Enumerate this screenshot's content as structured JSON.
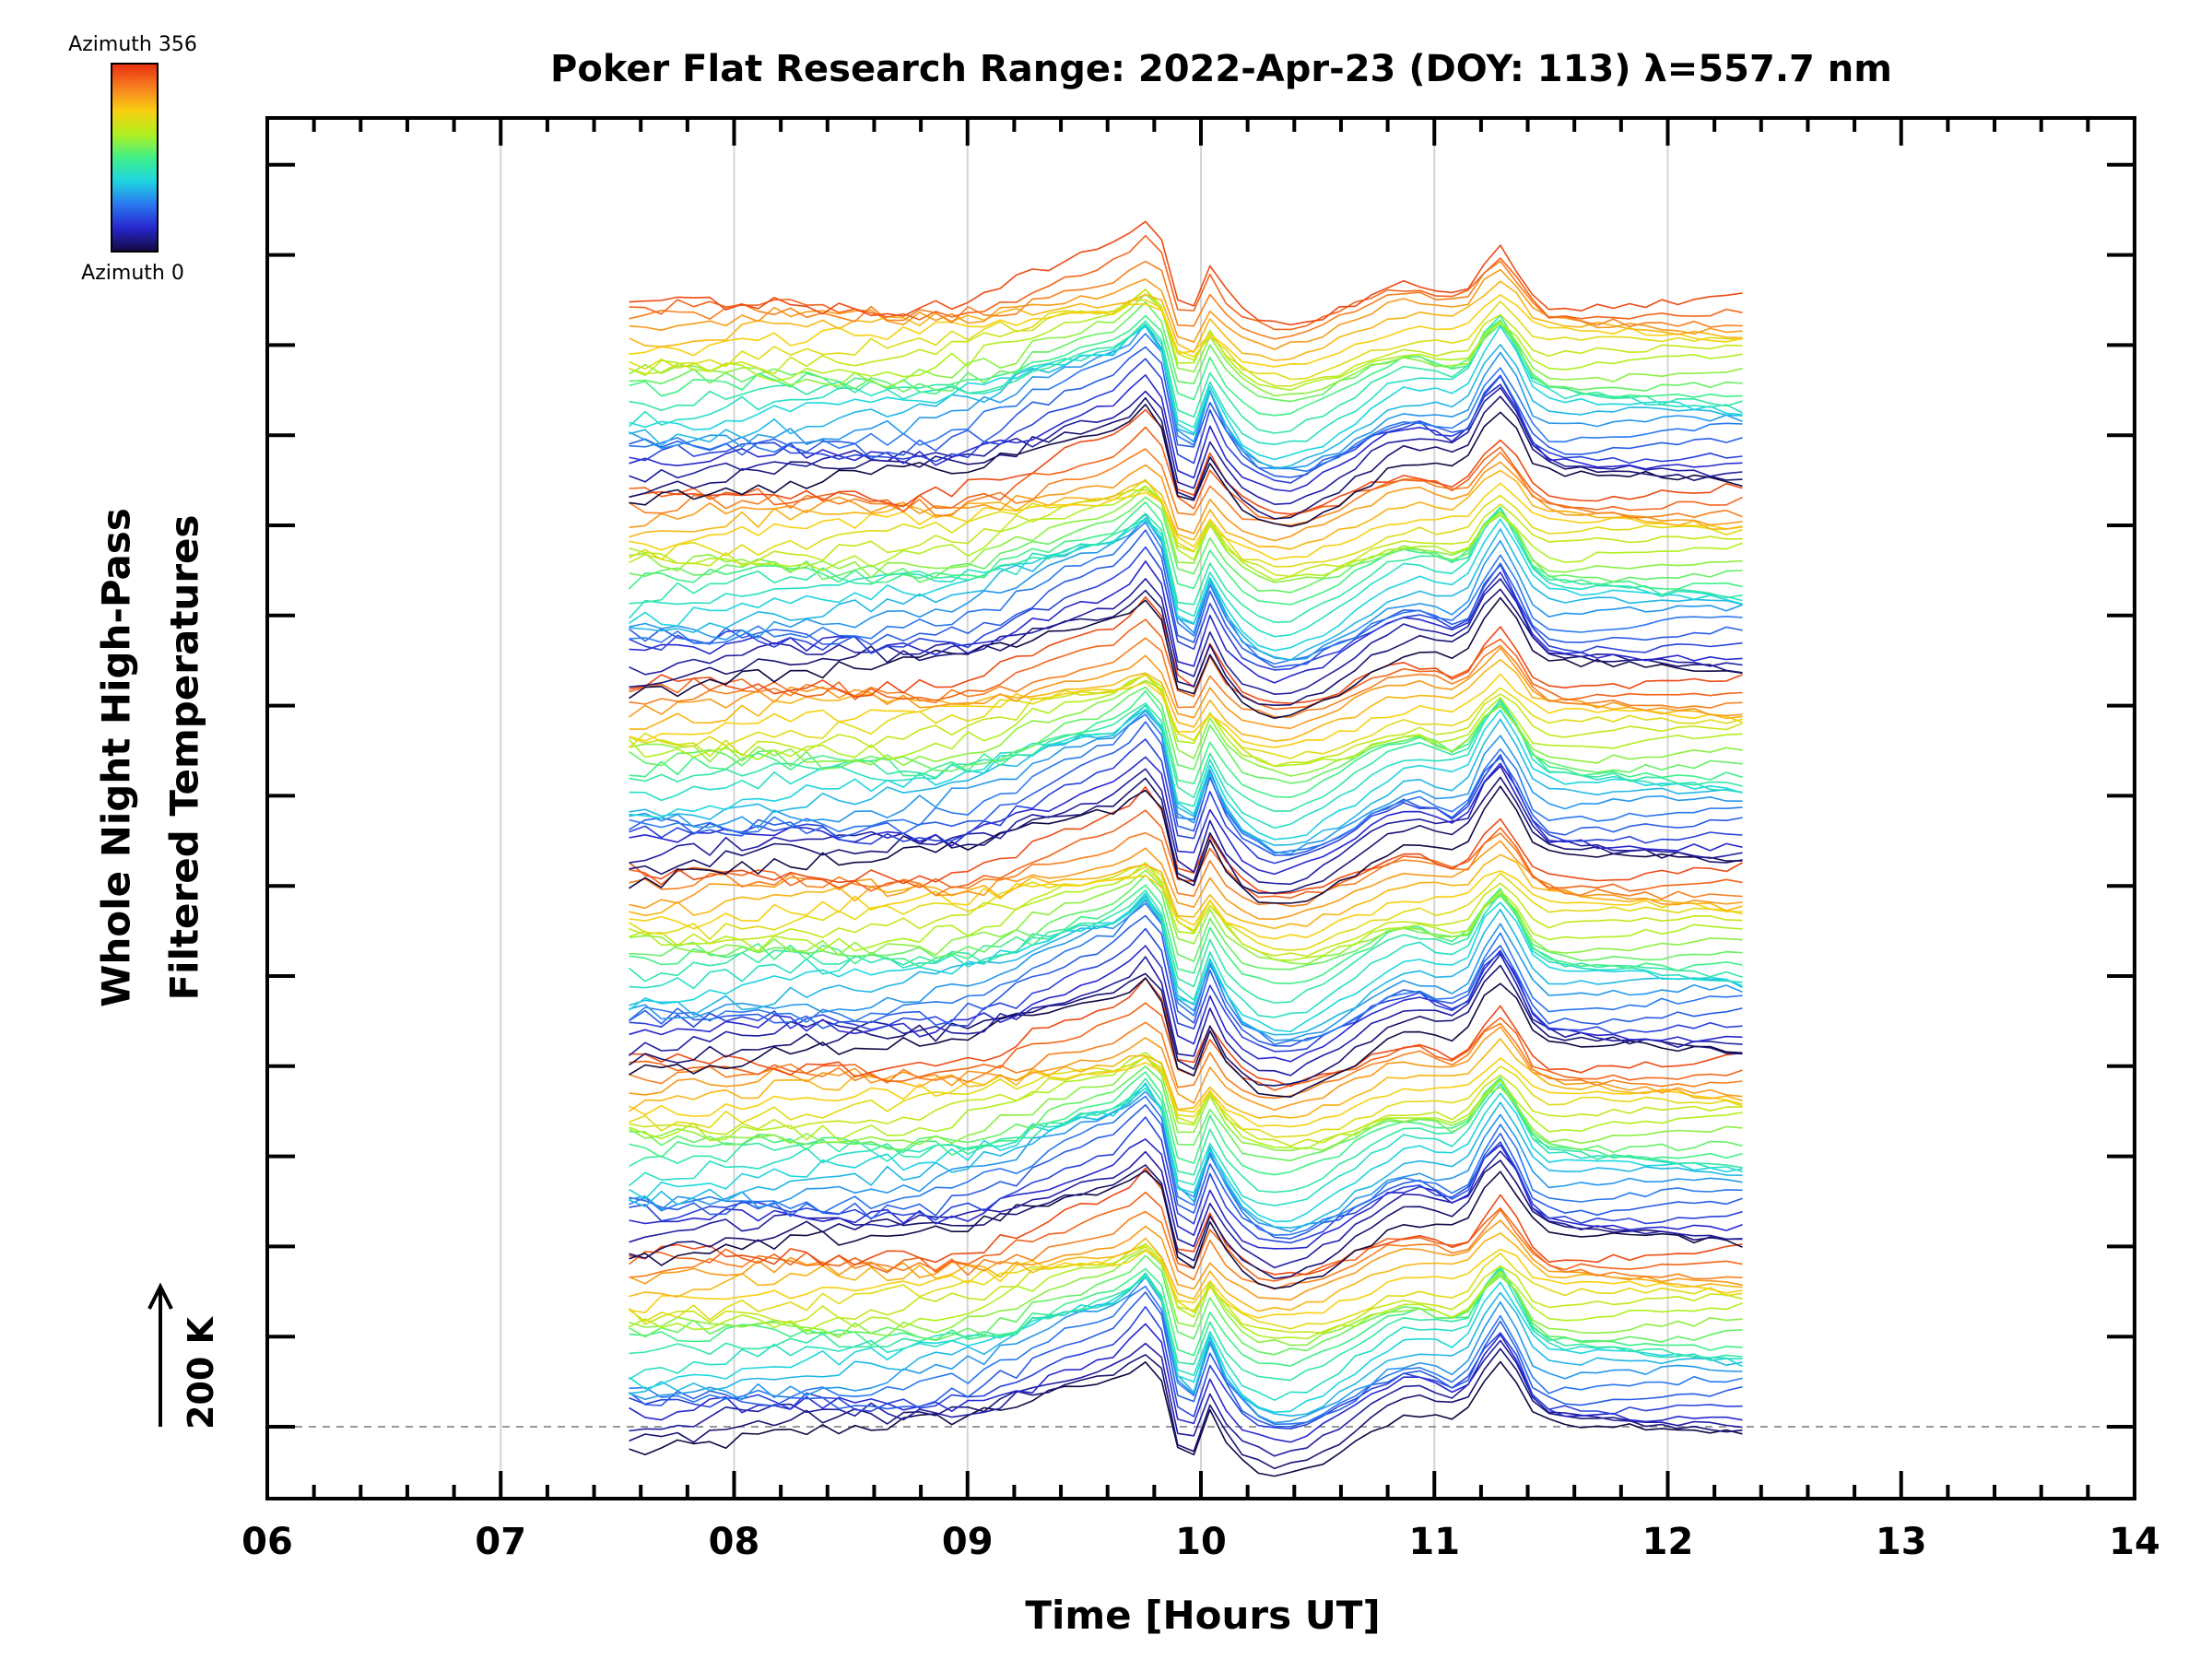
{
  "chart_data": {
    "type": "line",
    "title": "Poker Flat Research Range: 2022-Apr-23 (DOY: 113) λ=557.7 nm",
    "xlabel": "Time [Hours UT]",
    "ylabel_lines": [
      "Whole Night High-Pass",
      "Filtered Temperatures"
    ],
    "xlim": [
      6,
      14
    ],
    "x_ticks": [
      "06",
      "07",
      "08",
      "09",
      "10",
      "11",
      "12",
      "13",
      "14"
    ],
    "x_gridlines": [
      7,
      8,
      9,
      10,
      11,
      12
    ],
    "x_range_of_data": [
      7.55,
      12.32
    ],
    "y_scale_bar": {
      "label": "200 K",
      "value_K": 200
    },
    "y_tick_count": 15,
    "grid": true,
    "colorbar": {
      "label_top": "Azimuth 356",
      "label_bottom": "Azimuth 0",
      "colors": [
        "#120a44",
        "#2828d0",
        "#2a78f0",
        "#1ed6e0",
        "#40f088",
        "#b0f020",
        "#f8d010",
        "#f88020",
        "#e83010"
      ]
    },
    "stacked_groups": 6,
    "traces_per_group": 24,
    "azimuth_sequence_note": "Traces are stacked and colored by azimuth (0 to 356)",
    "common_features_hours": {
      "broad_rise_peak": 9.7,
      "sharp_drop": 9.92,
      "secondary_peak": 10.02,
      "trough": 10.3,
      "bump": 10.9,
      "strong_peak": 11.28
    }
  }
}
